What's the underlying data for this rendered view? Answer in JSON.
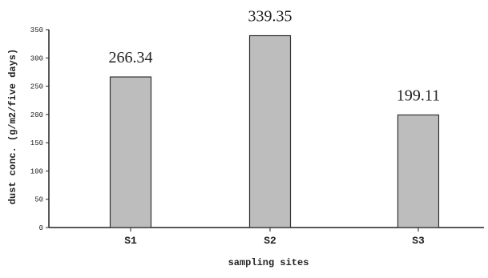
{
  "chart_data": {
    "type": "bar",
    "categories": [
      "S1",
      "S2",
      "S3"
    ],
    "values": [
      266.34,
      339.35,
      199.11
    ],
    "data_labels": [
      "266.34",
      "339.35",
      "199.11"
    ],
    "xlabel": "sampling sites",
    "ylabel": "dust conc. (g/m2/five days)",
    "ylim": [
      0,
      350
    ],
    "yticks": [
      0,
      50,
      100,
      150,
      200,
      250,
      300,
      350
    ],
    "ytick_labels": [
      "0",
      "50",
      "100",
      "150",
      "200",
      "250",
      "300",
      "350"
    ],
    "grid": false,
    "legend": "none",
    "bar_color": "#bdbdbd",
    "bar_edge_color": "#333333"
  }
}
